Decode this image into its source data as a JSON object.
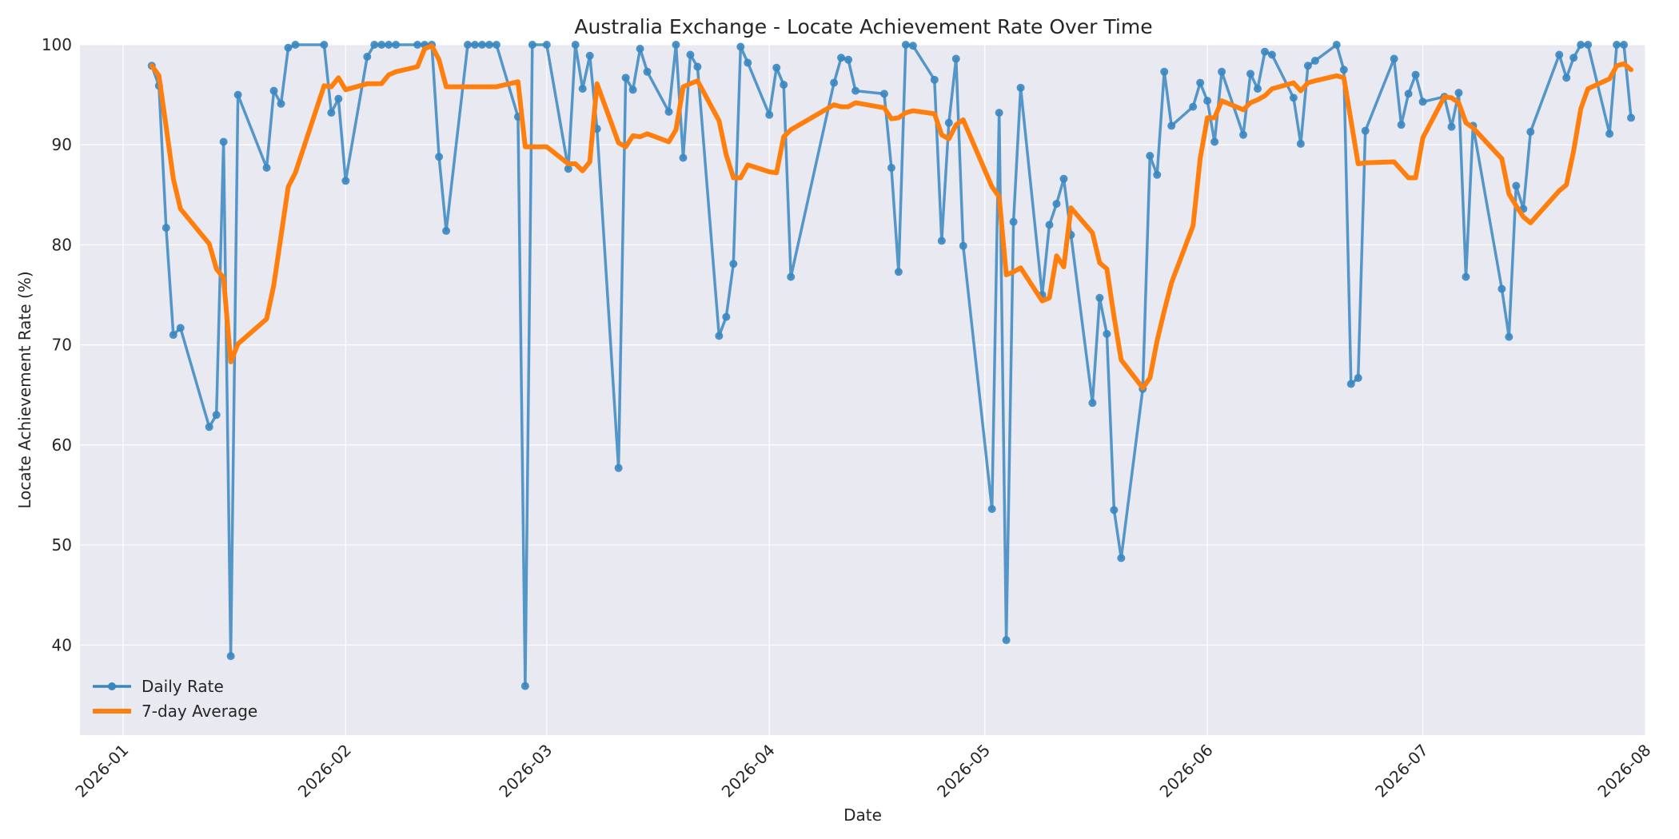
{
  "chart_data": {
    "type": "line",
    "title": "Australia Exchange - Locate Achievement Rate Over Time",
    "xlabel": "Date",
    "ylabel": "Locate Achievement Rate (%)",
    "xlim": [
      "2025-12-26",
      "2026-08-01"
    ],
    "ylim": [
      31,
      100
    ],
    "xticks": [
      "2026-01",
      "2026-02",
      "2026-03",
      "2026-04",
      "2026-05",
      "2026-06",
      "2026-07",
      "2026-08"
    ],
    "yticks": [
      40,
      50,
      60,
      70,
      80,
      90,
      100
    ],
    "grid": true,
    "legend_position": "lower-left",
    "colors": {
      "daily": "#3a87c0",
      "average": "#ff7f0e",
      "plot_bg": "#e9e9f1"
    },
    "series": [
      {
        "name": "Daily Rate",
        "marker": "circle",
        "points": [
          [
            "2026-01-05",
            97.9
          ],
          [
            "2026-01-06",
            95.9
          ],
          [
            "2026-01-07",
            81.7
          ],
          [
            "2026-01-08",
            71.0
          ],
          [
            "2026-01-09",
            71.7
          ],
          [
            "2026-01-13",
            61.8
          ],
          [
            "2026-01-14",
            63.0
          ],
          [
            "2026-01-15",
            90.3
          ],
          [
            "2026-01-16",
            38.9
          ],
          [
            "2026-01-17",
            95.0
          ],
          [
            "2026-01-21",
            87.7
          ],
          [
            "2026-01-22",
            95.4
          ],
          [
            "2026-01-23",
            94.1
          ],
          [
            "2026-01-24",
            99.7
          ],
          [
            "2026-01-25",
            100.0
          ],
          [
            "2026-01-29",
            100.0
          ],
          [
            "2026-01-30",
            93.2
          ],
          [
            "2026-01-31",
            94.6
          ],
          [
            "2026-02-01",
            86.4
          ],
          [
            "2026-02-04",
            98.8
          ],
          [
            "2026-02-05",
            100.0
          ],
          [
            "2026-02-06",
            100.0
          ],
          [
            "2026-02-07",
            100.0
          ],
          [
            "2026-02-08",
            100.0
          ],
          [
            "2026-02-11",
            100.0
          ],
          [
            "2026-02-12",
            100.0
          ],
          [
            "2026-02-13",
            100.0
          ],
          [
            "2026-02-14",
            88.8
          ],
          [
            "2026-02-15",
            81.4
          ],
          [
            "2026-02-18",
            100.0
          ],
          [
            "2026-02-19",
            100.0
          ],
          [
            "2026-02-20",
            100.0
          ],
          [
            "2026-02-21",
            100.0
          ],
          [
            "2026-02-22",
            100.0
          ],
          [
            "2026-02-25",
            92.8
          ],
          [
            "2026-02-26",
            35.9
          ],
          [
            "2026-02-27",
            100.0
          ],
          [
            "2026-03-01",
            100.0
          ],
          [
            "2026-03-04",
            87.6
          ],
          [
            "2026-03-05",
            100.0
          ],
          [
            "2026-03-06",
            95.6
          ],
          [
            "2026-03-07",
            98.9
          ],
          [
            "2026-03-08",
            91.6
          ],
          [
            "2026-03-11",
            57.7
          ],
          [
            "2026-03-12",
            96.7
          ],
          [
            "2026-03-13",
            95.5
          ],
          [
            "2026-03-14",
            99.6
          ],
          [
            "2026-03-15",
            97.3
          ],
          [
            "2026-03-18",
            93.3
          ],
          [
            "2026-03-19",
            100.0
          ],
          [
            "2026-03-20",
            88.7
          ],
          [
            "2026-03-21",
            99.0
          ],
          [
            "2026-03-22",
            97.8
          ],
          [
            "2026-03-25",
            70.9
          ],
          [
            "2026-03-26",
            72.8
          ],
          [
            "2026-03-27",
            78.1
          ],
          [
            "2026-03-28",
            99.8
          ],
          [
            "2026-03-29",
            98.2
          ],
          [
            "2026-04-01",
            93.0
          ],
          [
            "2026-04-02",
            97.7
          ],
          [
            "2026-04-03",
            96.0
          ],
          [
            "2026-04-04",
            76.8
          ],
          [
            "2026-04-10",
            96.2
          ],
          [
            "2026-04-11",
            98.7
          ],
          [
            "2026-04-12",
            98.5
          ],
          [
            "2026-04-13",
            95.4
          ],
          [
            "2026-04-17",
            95.1
          ],
          [
            "2026-04-18",
            87.7
          ],
          [
            "2026-04-19",
            77.3
          ],
          [
            "2026-04-20",
            100.0
          ],
          [
            "2026-04-21",
            99.9
          ],
          [
            "2026-04-24",
            96.5
          ],
          [
            "2026-04-25",
            80.4
          ],
          [
            "2026-04-26",
            92.2
          ],
          [
            "2026-04-27",
            98.6
          ],
          [
            "2026-04-28",
            79.9
          ],
          [
            "2026-05-02",
            53.6
          ],
          [
            "2026-05-03",
            93.2
          ],
          [
            "2026-05-04",
            40.5
          ],
          [
            "2026-05-05",
            82.3
          ],
          [
            "2026-05-06",
            95.7
          ],
          [
            "2026-05-09",
            75.0
          ],
          [
            "2026-05-10",
            82.0
          ],
          [
            "2026-05-11",
            84.1
          ],
          [
            "2026-05-12",
            86.6
          ],
          [
            "2026-05-13",
            81.0
          ],
          [
            "2026-05-16",
            64.2
          ],
          [
            "2026-05-17",
            74.7
          ],
          [
            "2026-05-18",
            71.1
          ],
          [
            "2026-05-19",
            53.5
          ],
          [
            "2026-05-20",
            48.7
          ],
          [
            "2026-05-23",
            65.6
          ],
          [
            "2026-05-24",
            88.9
          ],
          [
            "2026-05-25",
            87.0
          ],
          [
            "2026-05-26",
            97.3
          ],
          [
            "2026-05-27",
            91.9
          ],
          [
            "2026-05-30",
            93.8
          ],
          [
            "2026-05-31",
            96.2
          ],
          [
            "2026-06-01",
            94.4
          ],
          [
            "2026-06-02",
            90.3
          ],
          [
            "2026-06-03",
            97.3
          ],
          [
            "2026-06-06",
            91.0
          ],
          [
            "2026-06-07",
            97.1
          ],
          [
            "2026-06-08",
            95.6
          ],
          [
            "2026-06-09",
            99.3
          ],
          [
            "2026-06-10",
            99.0
          ],
          [
            "2026-06-13",
            94.7
          ],
          [
            "2026-06-14",
            90.1
          ],
          [
            "2026-06-15",
            97.9
          ],
          [
            "2026-06-16",
            98.4
          ],
          [
            "2026-06-19",
            100.0
          ],
          [
            "2026-06-20",
            97.5
          ],
          [
            "2026-06-21",
            66.1
          ],
          [
            "2026-06-22",
            66.7
          ],
          [
            "2026-06-23",
            91.4
          ],
          [
            "2026-06-27",
            98.6
          ],
          [
            "2026-06-28",
            92.0
          ],
          [
            "2026-06-29",
            95.1
          ],
          [
            "2026-06-30",
            97.0
          ],
          [
            "2026-07-01",
            94.3
          ],
          [
            "2026-07-04",
            94.8
          ],
          [
            "2026-07-05",
            91.8
          ],
          [
            "2026-07-06",
            95.2
          ],
          [
            "2026-07-07",
            76.8
          ],
          [
            "2026-07-08",
            91.9
          ],
          [
            "2026-07-12",
            75.6
          ],
          [
            "2026-07-13",
            70.8
          ],
          [
            "2026-07-14",
            85.9
          ],
          [
            "2026-07-15",
            83.6
          ],
          [
            "2026-07-16",
            91.3
          ],
          [
            "2026-07-20",
            99.0
          ],
          [
            "2026-07-21",
            96.7
          ],
          [
            "2026-07-22",
            98.7
          ],
          [
            "2026-07-23",
            100.0
          ],
          [
            "2026-07-24",
            100.0
          ],
          [
            "2026-07-27",
            91.1
          ],
          [
            "2026-07-28",
            100.0
          ],
          [
            "2026-07-29",
            100.0
          ],
          [
            "2026-07-30",
            92.7
          ]
        ]
      },
      {
        "name": "7-day Average",
        "marker": "none",
        "points": [
          [
            "2026-01-05",
            97.9
          ],
          [
            "2026-01-06",
            96.9
          ],
          [
            "2026-01-07",
            91.8
          ],
          [
            "2026-01-08",
            86.6
          ],
          [
            "2026-01-09",
            83.6
          ],
          [
            "2026-01-13",
            80.1
          ],
          [
            "2026-01-14",
            77.6
          ],
          [
            "2026-01-15",
            76.7
          ],
          [
            "2026-01-16",
            68.3
          ],
          [
            "2026-01-17",
            70.1
          ],
          [
            "2026-01-21",
            72.6
          ],
          [
            "2026-01-22",
            76.0
          ],
          [
            "2026-01-23",
            80.9
          ],
          [
            "2026-01-24",
            85.8
          ],
          [
            "2026-01-25",
            87.2
          ],
          [
            "2026-01-29",
            95.9
          ],
          [
            "2026-01-30",
            95.8
          ],
          [
            "2026-01-31",
            96.7
          ],
          [
            "2026-02-01",
            95.5
          ],
          [
            "2026-02-04",
            96.1
          ],
          [
            "2026-02-05",
            96.1
          ],
          [
            "2026-02-06",
            96.1
          ],
          [
            "2026-02-07",
            97.0
          ],
          [
            "2026-02-08",
            97.3
          ],
          [
            "2026-02-11",
            97.8
          ],
          [
            "2026-02-12",
            99.6
          ],
          [
            "2026-02-13",
            99.9
          ],
          [
            "2026-02-14",
            98.5
          ],
          [
            "2026-02-15",
            95.8
          ],
          [
            "2026-02-18",
            95.8
          ],
          [
            "2026-02-19",
            95.8
          ],
          [
            "2026-02-20",
            95.8
          ],
          [
            "2026-02-21",
            95.8
          ],
          [
            "2026-02-22",
            95.8
          ],
          [
            "2026-02-25",
            96.3
          ],
          [
            "2026-02-26",
            89.8
          ],
          [
            "2026-02-27",
            89.8
          ],
          [
            "2026-03-01",
            89.8
          ],
          [
            "2026-03-04",
            88.1
          ],
          [
            "2026-03-05",
            88.1
          ],
          [
            "2026-03-06",
            87.4
          ],
          [
            "2026-03-07",
            88.3
          ],
          [
            "2026-03-08",
            96.1
          ],
          [
            "2026-03-11",
            90.2
          ],
          [
            "2026-03-12",
            89.8
          ],
          [
            "2026-03-13",
            90.9
          ],
          [
            "2026-03-14",
            90.8
          ],
          [
            "2026-03-15",
            91.1
          ],
          [
            "2026-03-18",
            90.3
          ],
          [
            "2026-03-19",
            91.5
          ],
          [
            "2026-03-20",
            95.8
          ],
          [
            "2026-03-21",
            96.1
          ],
          [
            "2026-03-22",
            96.4
          ],
          [
            "2026-03-25",
            92.4
          ],
          [
            "2026-03-26",
            89.0
          ],
          [
            "2026-03-27",
            86.7
          ],
          [
            "2026-03-28",
            86.7
          ],
          [
            "2026-03-29",
            88.0
          ],
          [
            "2026-04-01",
            87.3
          ],
          [
            "2026-04-02",
            87.2
          ],
          [
            "2026-04-03",
            90.8
          ],
          [
            "2026-04-04",
            91.5
          ],
          [
            "2026-04-10",
            94.0
          ],
          [
            "2026-04-11",
            93.8
          ],
          [
            "2026-04-12",
            93.8
          ],
          [
            "2026-04-13",
            94.2
          ],
          [
            "2026-04-17",
            93.7
          ],
          [
            "2026-04-18",
            92.6
          ],
          [
            "2026-04-19",
            92.7
          ],
          [
            "2026-04-20",
            93.2
          ],
          [
            "2026-04-21",
            93.4
          ],
          [
            "2026-04-24",
            93.1
          ],
          [
            "2026-04-25",
            91.0
          ],
          [
            "2026-04-26",
            90.6
          ],
          [
            "2026-04-27",
            92.0
          ],
          [
            "2026-04-28",
            92.5
          ],
          [
            "2026-05-02",
            85.8
          ],
          [
            "2026-05-03",
            84.8
          ],
          [
            "2026-05-04",
            77.0
          ],
          [
            "2026-05-05",
            77.3
          ],
          [
            "2026-05-06",
            77.7
          ],
          [
            "2026-05-09",
            74.4
          ],
          [
            "2026-05-10",
            74.7
          ],
          [
            "2026-05-11",
            78.9
          ],
          [
            "2026-05-12",
            77.8
          ],
          [
            "2026-05-13",
            83.7
          ],
          [
            "2026-05-16",
            81.2
          ],
          [
            "2026-05-17",
            78.2
          ],
          [
            "2026-05-18",
            77.6
          ],
          [
            "2026-05-19",
            72.8
          ],
          [
            "2026-05-20",
            68.5
          ],
          [
            "2026-05-23",
            65.7
          ],
          [
            "2026-05-24",
            66.7
          ],
          [
            "2026-05-25",
            70.4
          ],
          [
            "2026-05-26",
            73.4
          ],
          [
            "2026-05-27",
            76.2
          ],
          [
            "2026-05-30",
            81.9
          ],
          [
            "2026-05-31",
            88.6
          ],
          [
            "2026-06-01",
            92.7
          ],
          [
            "2026-06-02",
            92.7
          ],
          [
            "2026-06-03",
            94.4
          ],
          [
            "2026-06-06",
            93.5
          ],
          [
            "2026-06-07",
            94.2
          ],
          [
            "2026-06-08",
            94.5
          ],
          [
            "2026-06-09",
            94.9
          ],
          [
            "2026-06-10",
            95.6
          ],
          [
            "2026-06-13",
            96.2
          ],
          [
            "2026-06-14",
            95.4
          ],
          [
            "2026-06-15",
            96.2
          ],
          [
            "2026-06-16",
            96.4
          ],
          [
            "2026-06-19",
            96.9
          ],
          [
            "2026-06-20",
            96.7
          ],
          [
            "2026-06-21",
            92.4
          ],
          [
            "2026-06-22",
            88.1
          ],
          [
            "2026-06-23",
            88.2
          ],
          [
            "2026-06-27",
            88.3
          ],
          [
            "2026-06-28",
            87.5
          ],
          [
            "2026-06-29",
            86.7
          ],
          [
            "2026-06-30",
            86.7
          ],
          [
            "2026-07-01",
            90.7
          ],
          [
            "2026-07-04",
            94.8
          ],
          [
            "2026-07-05",
            94.7
          ],
          [
            "2026-07-06",
            94.2
          ],
          [
            "2026-07-07",
            92.2
          ],
          [
            "2026-07-08",
            91.7
          ],
          [
            "2026-07-12",
            88.6
          ],
          [
            "2026-07-13",
            85.1
          ],
          [
            "2026-07-14",
            83.9
          ],
          [
            "2026-07-15",
            82.8
          ],
          [
            "2026-07-16",
            82.2
          ],
          [
            "2026-07-20",
            85.4
          ],
          [
            "2026-07-21",
            86.0
          ],
          [
            "2026-07-22",
            89.4
          ],
          [
            "2026-07-23",
            93.6
          ],
          [
            "2026-07-24",
            95.6
          ],
          [
            "2026-07-27",
            96.6
          ],
          [
            "2026-07-28",
            97.9
          ],
          [
            "2026-07-29",
            98.1
          ],
          [
            "2026-07-30",
            97.5
          ]
        ]
      }
    ]
  }
}
